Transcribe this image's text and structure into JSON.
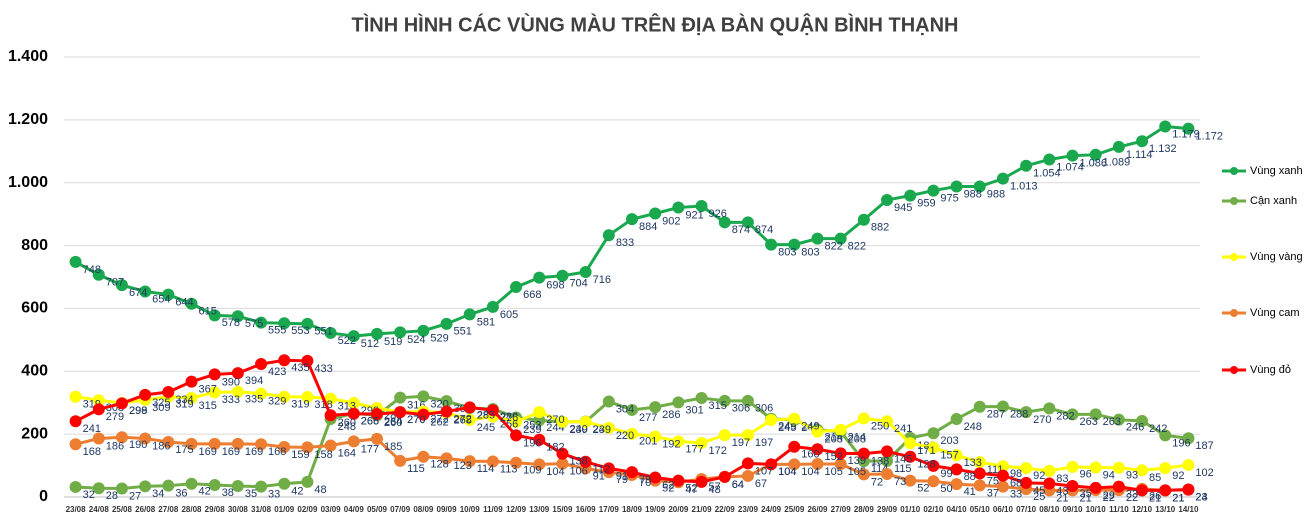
{
  "chart_data": {
    "type": "line",
    "title": "TÌNH HÌNH CÁC VÙNG MÀU TRÊN ĐỊA BÀN QUẬN BÌNH THẠNH",
    "categories": [
      "23/08",
      "24/08",
      "25/08",
      "26/08",
      "27/08",
      "28/08",
      "29/08",
      "30/08",
      "31/08",
      "01/09",
      "02/09",
      "03/09",
      "04/09",
      "05/09",
      "07/09",
      "08/09",
      "09/09",
      "10/09",
      "11/09",
      "12/09",
      "13/09",
      "15/09",
      "16/09",
      "17/09",
      "18/09",
      "19/09",
      "20/09",
      "21/09",
      "22/09",
      "23/09",
      "24/09",
      "25/09",
      "26/09",
      "27/09",
      "28/09",
      "29/09",
      "01/10",
      "02/10",
      "04/10",
      "05/10",
      "06/10",
      "07/10",
      "08/10",
      "09/10",
      "10/10",
      "11/10",
      "12/10",
      "13/10",
      "14/10"
    ],
    "series": [
      {
        "name": "Vùng xanh",
        "color": "#1aa84f",
        "values": [
          748,
          707,
          674,
          654,
          644,
          615,
          578,
          575,
          555,
          553,
          551,
          522,
          512,
          519,
          524,
          529,
          551,
          581,
          605,
          668,
          698,
          704,
          716,
          833,
          884,
          902,
          921,
          926,
          874,
          874,
          803,
          803,
          822,
          822,
          882,
          945,
          959,
          975,
          988,
          988,
          1013,
          1054,
          1074,
          1086,
          1089,
          1114,
          1132,
          1179,
          1172
        ],
        "value_labels": [
          "748",
          "707",
          "674",
          "654",
          "644",
          "615",
          "578",
          "575",
          "555",
          "553",
          "551",
          "522",
          "512",
          "519",
          "524",
          "529",
          "551",
          "581",
          "605",
          "668",
          "698",
          "704",
          "716",
          "833",
          "884",
          "902",
          "921",
          "926",
          "874",
          "874",
          "803",
          "803",
          "822",
          "822",
          "882",
          "945",
          "959",
          "975",
          "988",
          "988",
          "1.013",
          "1.054",
          "1.074",
          "1.086",
          "1.089",
          "1.114",
          "1.132",
          "1.179",
          "1.172"
        ]
      },
      {
        "name": "Cận xanh",
        "color": "#70ad47",
        "values": [
          32,
          28,
          27,
          34,
          36,
          42,
          38,
          35,
          33,
          42,
          48,
          248,
          266,
          260,
          316,
          320,
          305,
          283,
          280,
          253,
          244,
          239,
          240,
          304,
          277,
          286,
          301,
          315,
          306,
          306,
          249,
          245,
          214,
          208,
          114,
          115,
          188,
          203,
          248,
          287,
          288,
          270,
          282,
          263,
          263,
          246,
          242,
          196,
          187
        ]
      },
      {
        "name": "Vùng vàng",
        "color": "#ffff00",
        "values": [
          319,
          308,
          299,
          309,
          319,
          315,
          333,
          335,
          329,
          319,
          318,
          313,
          299,
          283,
          270,
          272,
          268,
          245,
          256,
          239,
          270,
          240,
          239,
          220,
          201,
          192,
          177,
          172,
          197,
          197,
          245,
          249,
          208,
          214,
          250,
          241,
          171,
          157,
          133,
          111,
          98,
          92,
          83,
          96,
          94,
          93,
          85,
          92,
          102
        ]
      },
      {
        "name": "Vùng cam",
        "color": "#ed7d31",
        "values": [
          168,
          186,
          190,
          186,
          175,
          169,
          169,
          169,
          168,
          159,
          158,
          164,
          177,
          185,
          115,
          128,
          123,
          114,
          113,
          109,
          104,
          106,
          91,
          79,
          70,
          52,
          47,
          57,
          64,
          67,
          104,
          104,
          105,
          105,
          72,
          73,
          52,
          50,
          41,
          37,
          33,
          25,
          21,
          21,
          22,
          22,
          26,
          21,
          23
        ]
      },
      {
        "name": "Vùng đỏ",
        "color": "#ff0000",
        "values": [
          241,
          279,
          298,
          325,
          334,
          367,
          390,
          394,
          423,
          435,
          433,
          260,
          265,
          264,
          270,
          262,
          272,
          285,
          276,
          196,
          182,
          138,
          112,
          91,
          79,
          62,
          52,
          48,
          64,
          107,
          104,
          160,
          152,
          139,
          138,
          145,
          128,
          99,
          88,
          75,
          68,
          45,
          43,
          35,
          29,
          33,
          21,
          21,
          24
        ]
      }
    ],
    "ylim": [
      0,
      1400
    ],
    "yticks": [
      0,
      200,
      400,
      600,
      800,
      {
        "value": 1000,
        "label": "1.000"
      },
      {
        "value": 1200,
        "label": "1.200"
      },
      {
        "value": 1400,
        "label": "1.400"
      }
    ],
    "grid": true,
    "legend": "right"
  }
}
